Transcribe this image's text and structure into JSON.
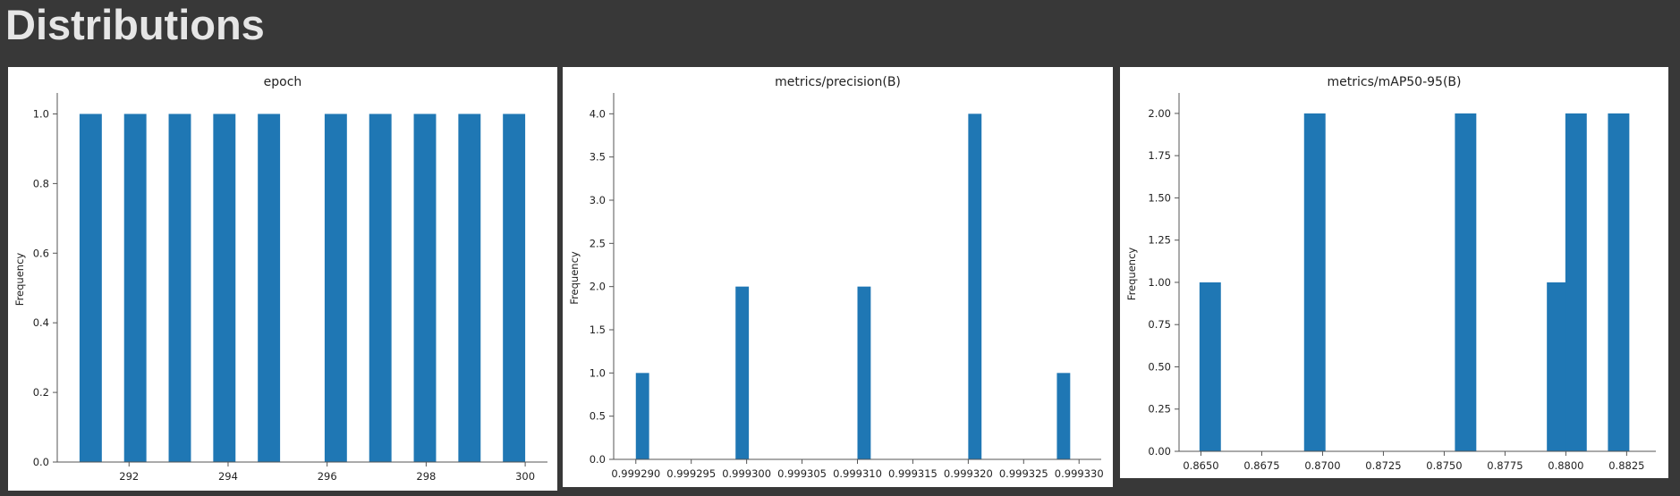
{
  "page": {
    "title": "Distributions"
  },
  "chart_data": [
    {
      "type": "bar",
      "title": "epoch",
      "xlabel": "",
      "ylabel": "Frequency",
      "xlim": [
        290.55,
        300.45
      ],
      "ylim": [
        0,
        1.05
      ],
      "xticks": [
        292,
        294,
        296,
        298,
        300
      ],
      "xtick_labels": [
        "292",
        "294",
        "296",
        "298",
        "300"
      ],
      "yticks": [
        0,
        0.2,
        0.4,
        0.6,
        0.8,
        1.0
      ],
      "ytick_labels": [
        "0.0",
        "0.2",
        "0.4",
        "0.6",
        "0.8",
        "1.0"
      ],
      "bin_width": 0.45,
      "bins": [
        {
          "x0": 291.0,
          "value": 1
        },
        {
          "x0": 291.9,
          "value": 1
        },
        {
          "x0": 292.8,
          "value": 1
        },
        {
          "x0": 293.7,
          "value": 1
        },
        {
          "x0": 294.6,
          "value": 1
        },
        {
          "x0": 295.95,
          "value": 1
        },
        {
          "x0": 296.85,
          "value": 1
        },
        {
          "x0": 297.75,
          "value": 1
        },
        {
          "x0": 298.65,
          "value": 1
        },
        {
          "x0": 299.55,
          "value": 1
        }
      ],
      "grid": false
    },
    {
      "type": "bar",
      "title": "metrics/precision(B)",
      "xlabel": "",
      "ylabel": "Frequency",
      "xlim": [
        0.999288,
        0.999332
      ],
      "ylim": [
        0,
        4.2
      ],
      "xticks": [
        0.99929,
        0.999295,
        0.9993,
        0.999305,
        0.99931,
        0.999315,
        0.99932,
        0.999325,
        0.99933
      ],
      "xtick_labels": [
        "0.999290",
        "0.999295",
        "0.999300",
        "0.999305",
        "0.999310",
        "0.999315",
        "0.999320",
        "0.999325",
        "0.999330"
      ],
      "yticks": [
        0,
        0.5,
        1.0,
        1.5,
        2.0,
        2.5,
        3.0,
        3.5,
        4.0
      ],
      "ytick_labels": [
        "0.0",
        "0.5",
        "1.0",
        "1.5",
        "2.0",
        "2.5",
        "3.0",
        "3.5",
        "4.0"
      ],
      "bin_width": 1.2e-06,
      "bins": [
        {
          "x0": 0.99929,
          "value": 1
        },
        {
          "x0": 0.999299,
          "value": 2
        },
        {
          "x0": 0.99931,
          "value": 2
        },
        {
          "x0": 0.99932,
          "value": 4
        },
        {
          "x0": 0.999328,
          "value": 1
        }
      ],
      "grid": false
    },
    {
      "type": "bar",
      "title": "metrics/mAP50-95(B)",
      "xlabel": "",
      "ylabel": "Frequency",
      "xlim": [
        0.8641,
        0.8837
      ],
      "ylim": [
        0,
        2.1
      ],
      "xticks": [
        0.865,
        0.8675,
        0.87,
        0.8725,
        0.875,
        0.8775,
        0.88,
        0.8825
      ],
      "xtick_labels": [
        "0.8650",
        "0.8675",
        "0.8700",
        "0.8725",
        "0.8750",
        "0.8775",
        "0.8800",
        "0.8825"
      ],
      "yticks": [
        0,
        0.25,
        0.5,
        0.75,
        1.0,
        1.25,
        1.5,
        1.75,
        2.0
      ],
      "ytick_labels": [
        "0.00",
        "0.25",
        "0.50",
        "0.75",
        "1.00",
        "1.25",
        "1.50",
        "1.75",
        "2.00"
      ],
      "bin_width": 0.00088,
      "bins": [
        {
          "x0": 0.86494,
          "value": 1
        },
        {
          "x0": 0.86924,
          "value": 2
        },
        {
          "x0": 0.87544,
          "value": 2
        },
        {
          "x0": 0.87922,
          "value": 1
        },
        {
          "x0": 0.87998,
          "value": 2
        },
        {
          "x0": 0.88173,
          "value": 2
        }
      ],
      "grid": false
    }
  ]
}
